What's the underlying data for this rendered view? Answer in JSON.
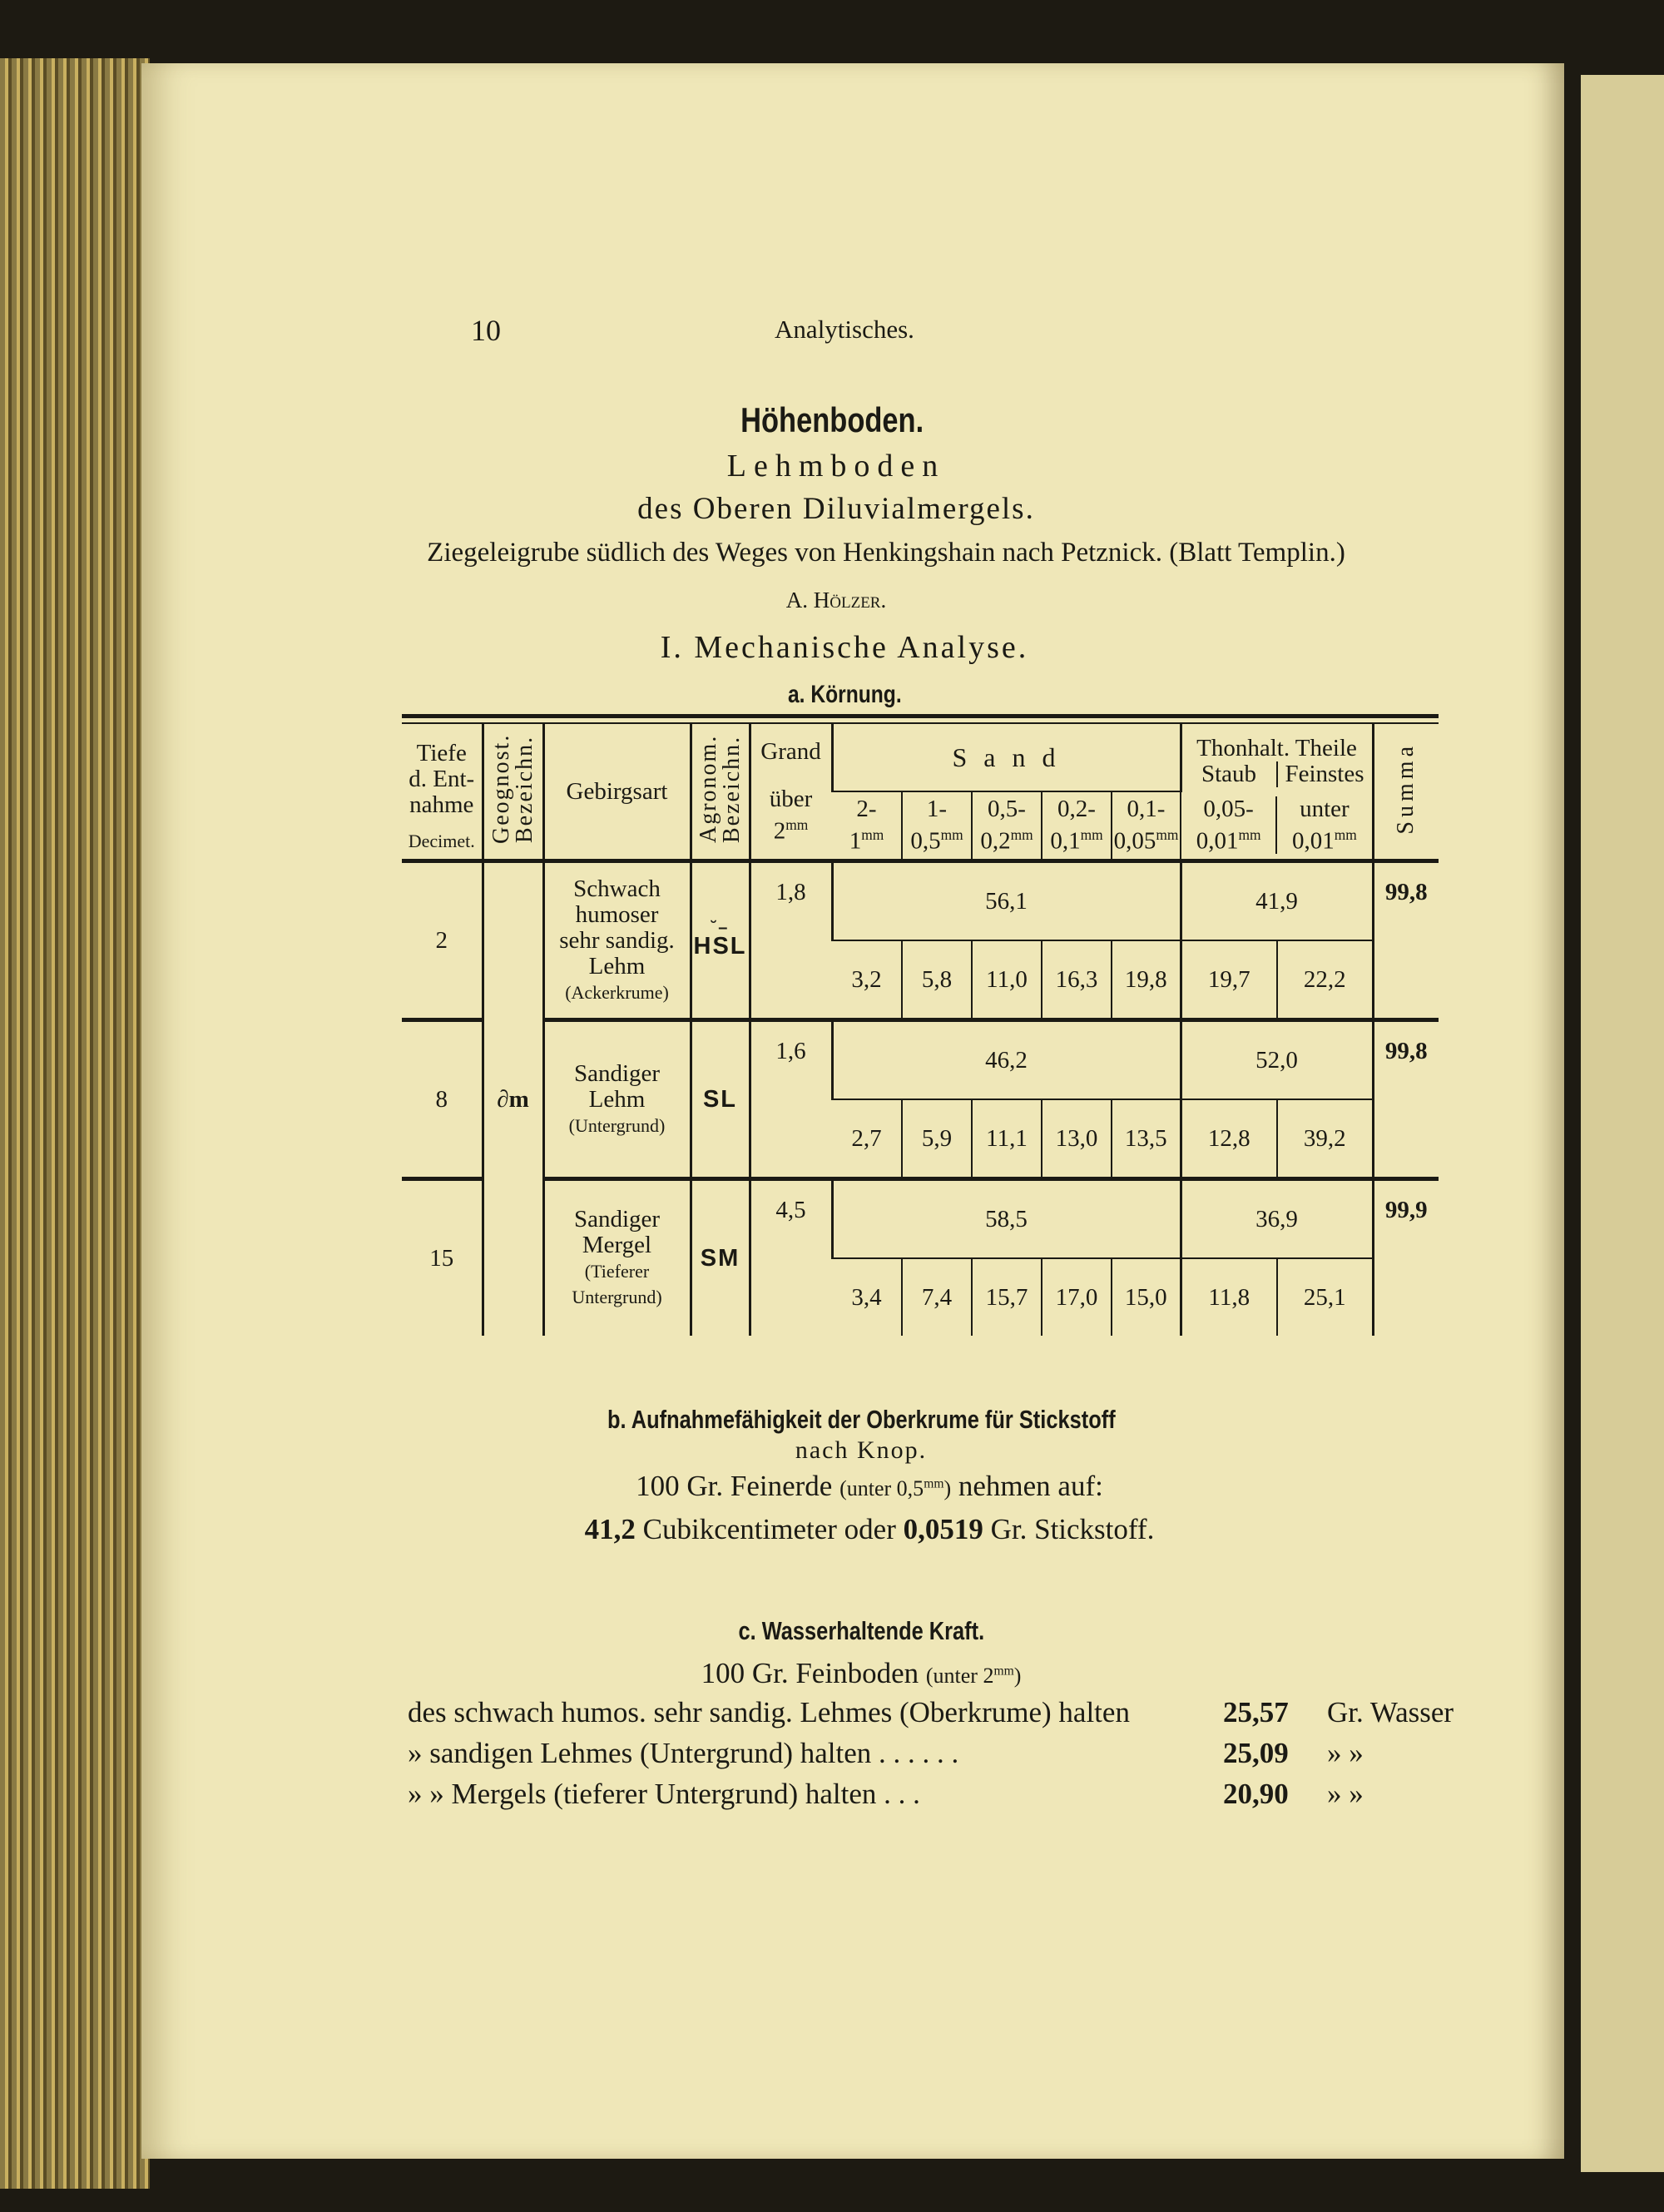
{
  "header": {
    "page_number": "10",
    "running_title": "Analytisches."
  },
  "title": "Höhenboden.",
  "subtitle1": "Lehmboden",
  "subtitle2": "des Oberen Diluvialmergels.",
  "location": "Ziegeleigrube südlich des Weges von Henkingshain nach Petznick. (Blatt Templin.)",
  "analyst": "A. Hölzer.",
  "section": "I. Mechanische Analyse.",
  "subsection_a": "a. Körnung.",
  "table": {
    "headers": {
      "tiefe": [
        "Tiefe",
        "d. Ent-",
        "nahme"
      ],
      "tiefe_unit": "Decimet.",
      "geognost": "Geognost. Bezeichn.",
      "gebirgsart": "Gebirgsart",
      "agronom": "Agronom. Bezeichn.",
      "grand": "Grand",
      "grand_sub": "über",
      "grand_size": "2",
      "grand_unit": "mm",
      "sand": "S a n d",
      "sand_cols": [
        {
          "a": "2-",
          "b": "1",
          "u": "mm"
        },
        {
          "a": "1-",
          "b": "0,5",
          "u": "mm"
        },
        {
          "a": "0,5-",
          "b": "0,2",
          "u": "mm"
        },
        {
          "a": "0,2-",
          "b": "0,1",
          "u": "mm"
        },
        {
          "a": "0,1-",
          "b": "0,05",
          "u": "mm"
        }
      ],
      "thon": "Thonhalt. Theile",
      "staub": "Staub",
      "staub_a": "0,05-",
      "staub_b": "0,01",
      "staub_u": "mm",
      "feinstes": "Feinstes",
      "feinstes_a": "unter",
      "feinstes_b": "0,01",
      "feinstes_u": "mm",
      "summa": "Summa"
    },
    "geognost_value": "∂m",
    "rows": [
      {
        "tiefe": "2",
        "gebirgsart": [
          "Schwach",
          "humoser",
          "sehr sandig.",
          "Lehm"
        ],
        "gebirgsart_note": "(Ackerkrume)",
        "agronom": "HSL",
        "agronom_mark": "˘–",
        "grand": "1,8",
        "sand_total": "56,1",
        "sand": [
          "3,2",
          "5,8",
          "11,0",
          "16,3",
          "19,8"
        ],
        "thon_total": "41,9",
        "staub": "19,7",
        "feinstes": "22,2",
        "summa": "99,8"
      },
      {
        "tiefe": "8",
        "gebirgsart": [
          "Sandiger",
          "Lehm"
        ],
        "gebirgsart_note": "(Untergrund)",
        "agronom": "SL",
        "agronom_mark": "",
        "grand": "1,6",
        "sand_total": "46,2",
        "sand": [
          "2,7",
          "5,9",
          "11,1",
          "13,0",
          "13,5"
        ],
        "thon_total": "52,0",
        "staub": "12,8",
        "feinstes": "39,2",
        "summa": "99,8"
      },
      {
        "tiefe": "15",
        "gebirgsart": [
          "Sandiger",
          "Mergel"
        ],
        "gebirgsart_note": "(Tieferer Untergrund)",
        "agronom": "SM",
        "agronom_mark": "",
        "grand": "4,5",
        "sand_total": "58,5",
        "sand": [
          "3,4",
          "7,4",
          "15,7",
          "17,0",
          "15,0"
        ],
        "thon_total": "36,9",
        "staub": "11,8",
        "feinstes": "25,1",
        "summa": "99,9"
      }
    ]
  },
  "subsection_b": {
    "title": "b. Aufnahmefähigkeit der Oberkrume für Stickstoff",
    "by": "nach Knop.",
    "line1_a": "100 Gr. Feinerde",
    "line1_b": "(unter 0,5",
    "line1_u": "mm",
    "line1_c": ")",
    "line1_d": "nehmen auf:",
    "line2_a": "41,2",
    "line2_b": "Cubikcentimeter oder",
    "line2_c": "0,0519",
    "line2_d": "Gr. Stickstoff."
  },
  "subsection_c": {
    "title": "c. Wasserhaltende Kraft.",
    "intro_a": "100 Gr. Feinboden",
    "intro_b": "(unter 2",
    "intro_u": "mm",
    "intro_c": ")",
    "rows": [
      {
        "label": "des schwach humos. sehr sandig. Lehmes (Oberkrume) halten",
        "value": "25,57",
        "unit": "Gr. Wasser"
      },
      {
        "label": "»  sandigen Lehmes (Untergrund) halten . . . . . .",
        "value": "25,09",
        "unit": "»          »"
      },
      {
        "label": "»       »     Mergels (tieferer Untergrund) halten . . .",
        "value": "20,90",
        "unit": "»          »"
      }
    ]
  }
}
